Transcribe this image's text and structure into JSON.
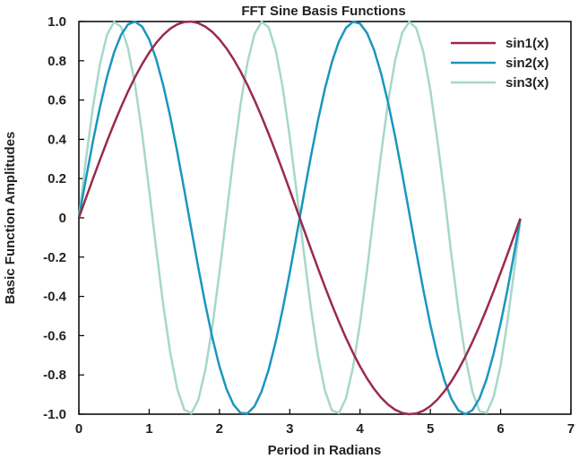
{
  "chart_data": {
    "type": "line",
    "title": "FFT Sine Basis Functions",
    "xlabel": "Period in Radians",
    "ylabel": "Basic Function Amplitudes",
    "xlim": [
      0,
      7
    ],
    "ylim": [
      -1,
      1
    ],
    "x_ticks": [
      "0",
      "1",
      "2",
      "3",
      "4",
      "5",
      "6",
      "7"
    ],
    "y_ticks": [
      "-1.0",
      "-0.8",
      "-0.6",
      "-0.4",
      "-0.2",
      "0",
      "0.2",
      "0.4",
      "0.6",
      "0.8",
      "1.0"
    ],
    "grid": false,
    "legend_position": "top-right",
    "x": [
      0,
      0.1,
      0.2,
      0.3,
      0.4,
      0.5,
      0.6,
      0.7,
      0.8,
      0.9,
      1.0,
      1.1,
      1.2,
      1.3,
      1.4,
      1.5,
      1.6,
      1.7,
      1.8,
      1.9,
      2.0,
      2.1,
      2.2,
      2.3,
      2.4,
      2.5,
      2.6,
      2.7,
      2.8,
      2.9,
      3.0,
      3.1,
      3.2,
      3.3,
      3.4,
      3.5,
      3.6,
      3.7,
      3.8,
      3.9,
      4.0,
      4.1,
      4.2,
      4.3,
      4.4,
      4.5,
      4.6,
      4.7,
      4.8,
      4.9,
      5.0,
      5.1,
      5.2,
      5.3,
      5.4,
      5.5,
      5.6,
      5.7,
      5.8,
      5.9,
      6.0,
      6.1,
      6.2,
      6.28
    ],
    "series": [
      {
        "name": "sin1(x)",
        "color": "#9b2a4b",
        "values": [
          0,
          0.0998,
          0.1987,
          0.2955,
          0.3894,
          0.4794,
          0.5646,
          0.6442,
          0.7174,
          0.7833,
          0.8415,
          0.8912,
          0.932,
          0.9636,
          0.9854,
          0.9975,
          0.9996,
          0.9917,
          0.9738,
          0.9463,
          0.9093,
          0.8632,
          0.8085,
          0.7457,
          0.6755,
          0.5985,
          0.5155,
          0.4274,
          0.335,
          0.2392,
          0.1411,
          0.0416,
          -0.0584,
          -0.1577,
          -0.2555,
          -0.3508,
          -0.4425,
          -0.5298,
          -0.6119,
          -0.6878,
          -0.7568,
          -0.8183,
          -0.8716,
          -0.9162,
          -0.9516,
          -0.9775,
          -0.9937,
          -0.9999,
          -0.9962,
          -0.9825,
          -0.9589,
          -0.9258,
          -0.8835,
          -0.8323,
          -0.7728,
          -0.7055,
          -0.6313,
          -0.5507,
          -0.4646,
          -0.3739,
          -0.2794,
          -0.1822,
          -0.0831,
          -0.0032
        ]
      },
      {
        "name": "sin2(x)",
        "color": "#1a96bf",
        "values": [
          0,
          0.1987,
          0.3894,
          0.5646,
          0.7174,
          0.8415,
          0.932,
          0.9854,
          0.9996,
          0.9738,
          0.9093,
          0.8085,
          0.6755,
          0.5155,
          0.335,
          0.1411,
          -0.0584,
          -0.2555,
          -0.4425,
          -0.6119,
          -0.7568,
          -0.8716,
          -0.9516,
          -0.9937,
          -0.9962,
          -0.9589,
          -0.8835,
          -0.7728,
          -0.6313,
          -0.4646,
          -0.2794,
          -0.0831,
          0.1165,
          0.3115,
          0.4941,
          0.657,
          0.7937,
          0.8987,
          0.9679,
          0.9985,
          0.9894,
          0.941,
          0.8546,
          0.7344,
          0.585,
          0.4121,
          0.2229,
          0.0248,
          -0.1743,
          -0.3665,
          -0.544,
          -0.6999,
          -0.8278,
          -0.9228,
          -0.9809,
          -1.0,
          -0.979,
          -0.9189,
          -0.8218,
          -0.6916,
          -0.5366,
          -0.3612,
          -0.1656,
          -0.0064
        ]
      },
      {
        "name": "sin3(x)",
        "color": "#a6d8c8",
        "values": [
          0,
          0.2955,
          0.5646,
          0.7833,
          0.932,
          0.9975,
          0.9738,
          0.8632,
          0.6755,
          0.4274,
          0.1411,
          -0.1577,
          -0.4425,
          -0.6878,
          -0.8716,
          -0.9775,
          -0.9962,
          -0.9258,
          -0.7728,
          -0.5507,
          -0.2794,
          0.0168,
          0.3115,
          0.5784,
          0.7937,
          0.938,
          0.9985,
          0.9699,
          0.8546,
          0.6636,
          0.4121,
          0.1245,
          -0.1743,
          -0.4575,
          -0.6999,
          -0.8797,
          -0.9809,
          -0.9946,
          -0.9189,
          -0.7607,
          -0.5366,
          -0.2647,
          0.0336,
          0.3274,
          0.5918,
          0.8038,
          0.9432,
          0.9986,
          0.9659,
          0.8455,
          0.6503,
          0.3955,
          0.1165,
          -0.1907,
          -0.4717,
          -0.7117,
          -0.8876,
          -0.9854,
          -0.9938,
          -0.9124,
          -0.751,
          -0.5203,
          -0.2481,
          -0.0096
        ]
      }
    ]
  }
}
